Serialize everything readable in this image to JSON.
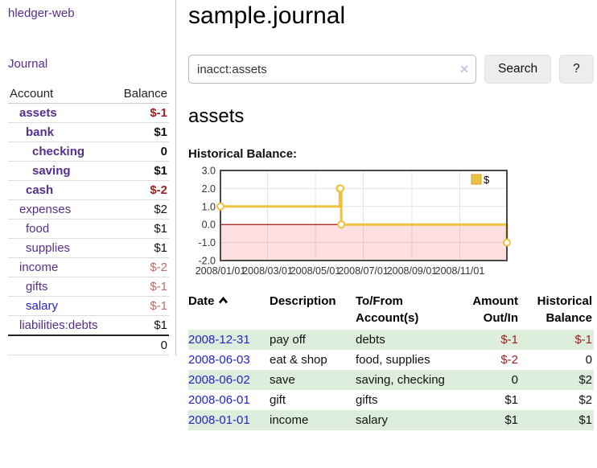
{
  "sidebar": {
    "brand": "hledger-web",
    "nav": {
      "journal": "Journal"
    },
    "accounts_table": {
      "headers": {
        "account": "Account",
        "balance": "Balance"
      },
      "rows": [
        {
          "name": "assets",
          "indent": 0,
          "emphasis": true,
          "link_color": "purple",
          "balance": "$-1",
          "tone": "neg-strong"
        },
        {
          "name": "bank",
          "indent": 1,
          "emphasis": true,
          "link_color": "purple",
          "balance": "$1",
          "tone": "pos"
        },
        {
          "name": "checking",
          "indent": 2,
          "emphasis": true,
          "link_color": "purple",
          "balance": "0",
          "tone": "pos"
        },
        {
          "name": "saving",
          "indent": 2,
          "emphasis": true,
          "link_color": "purple",
          "balance": "$1",
          "tone": "pos"
        },
        {
          "name": "cash",
          "indent": 1,
          "emphasis": true,
          "link_color": "purple",
          "balance": "$-2",
          "tone": "neg-strong"
        },
        {
          "name": "expenses",
          "indent": 0,
          "emphasis": false,
          "link_color": "purple",
          "balance": "$2",
          "tone": "pos"
        },
        {
          "name": "food",
          "indent": 1,
          "emphasis": false,
          "link_color": "purple",
          "balance": "$1",
          "tone": "pos"
        },
        {
          "name": "supplies",
          "indent": 1,
          "emphasis": false,
          "link_color": "purple",
          "balance": "$1",
          "tone": "pos"
        },
        {
          "name": "income",
          "indent": 0,
          "emphasis": false,
          "link_color": "purple",
          "balance": "$-2",
          "tone": "neg-soft"
        },
        {
          "name": "gifts",
          "indent": 1,
          "emphasis": false,
          "link_color": "purple",
          "balance": "$-1",
          "tone": "neg-soft"
        },
        {
          "name": "salary",
          "indent": 1,
          "emphasis": false,
          "link_color": "blue",
          "balance": "$-1",
          "tone": "neg-soft"
        },
        {
          "name": "liabilities:debts",
          "indent": 0,
          "emphasis": false,
          "link_color": "purple",
          "balance": "$1",
          "tone": "pos"
        }
      ],
      "total": "0"
    }
  },
  "header": {
    "title": "sample.journal"
  },
  "search": {
    "query": "inacct:assets",
    "clear_icon": "✕",
    "button": "Search",
    "help_button": "?"
  },
  "account_page": {
    "heading": "assets",
    "chart_label": "Historical Balance:"
  },
  "chart_data": {
    "type": "line",
    "title": "Historical Balance:",
    "step": true,
    "x_range": [
      "2008-01-01",
      "2008-12-31"
    ],
    "ylim": [
      -2,
      3
    ],
    "y_ticks": [
      3,
      2,
      1,
      0,
      -1,
      -2
    ],
    "x_ticks": [
      {
        "date": "2008-01-01",
        "label": "2008/01/01"
      },
      {
        "date": "2008-03-01",
        "label": "2008/03/01"
      },
      {
        "date": "2008-05-01",
        "label": "2008/05/01"
      },
      {
        "date": "2008-07-01",
        "label": "2008/07/01"
      },
      {
        "date": "2008-09-01",
        "label": "2008/09/01"
      },
      {
        "date": "2008-11-01",
        "label": "2008/11/01"
      }
    ],
    "series": [
      {
        "name": "$",
        "color": "#EDC240",
        "points": [
          [
            "2008-01-01",
            1
          ],
          [
            "2008-06-01",
            2
          ],
          [
            "2008-06-02",
            2
          ],
          [
            "2008-06-03",
            0
          ],
          [
            "2008-12-31",
            -1
          ]
        ]
      }
    ],
    "legend_position": "top-right",
    "grid": true,
    "negative_region": {
      "below": 0,
      "fill": "#FF0000",
      "opacity": 0.12
    },
    "zero_line_color": "#8B0000"
  },
  "register_table": {
    "columns": [
      "Date",
      "Description",
      "To/From Account(s)",
      "Amount Out/In",
      "Historical Balance"
    ],
    "sort": {
      "column": "Date",
      "direction": "ascending"
    },
    "rows": [
      {
        "date": "2008-12-31",
        "description": "pay off",
        "accounts": "debts",
        "amount": "$-1",
        "amount_negative": true,
        "balance": "$-1",
        "balance_negative": true
      },
      {
        "date": "2008-06-03",
        "description": "eat & shop",
        "accounts": "food, supplies",
        "amount": "$-2",
        "amount_negative": true,
        "balance": "0",
        "balance_negative": false
      },
      {
        "date": "2008-06-02",
        "description": "save",
        "accounts": "saving, checking",
        "amount": "0",
        "amount_negative": false,
        "balance": "$2",
        "balance_negative": false
      },
      {
        "date": "2008-06-01",
        "description": "gift",
        "accounts": "gifts",
        "amount": "$1",
        "amount_negative": false,
        "balance": "$2",
        "balance_negative": false
      },
      {
        "date": "2008-01-01",
        "description": "income",
        "accounts": "salary",
        "amount": "$1",
        "amount_negative": false,
        "balance": "$1",
        "balance_negative": false
      }
    ]
  },
  "colors": {
    "link_purple": "#552E91",
    "link_blue": "#2323CC",
    "negative_strong": "#9D1F1F",
    "negative_soft": "#BD6C6C",
    "row_stripe_green": "#DDEEDD",
    "chart_series_gold": "#EDC240",
    "chart_negative_fill": "#FFDEDE",
    "chart_zero_line": "#8B0000",
    "button_bg": "#EDEDED"
  }
}
